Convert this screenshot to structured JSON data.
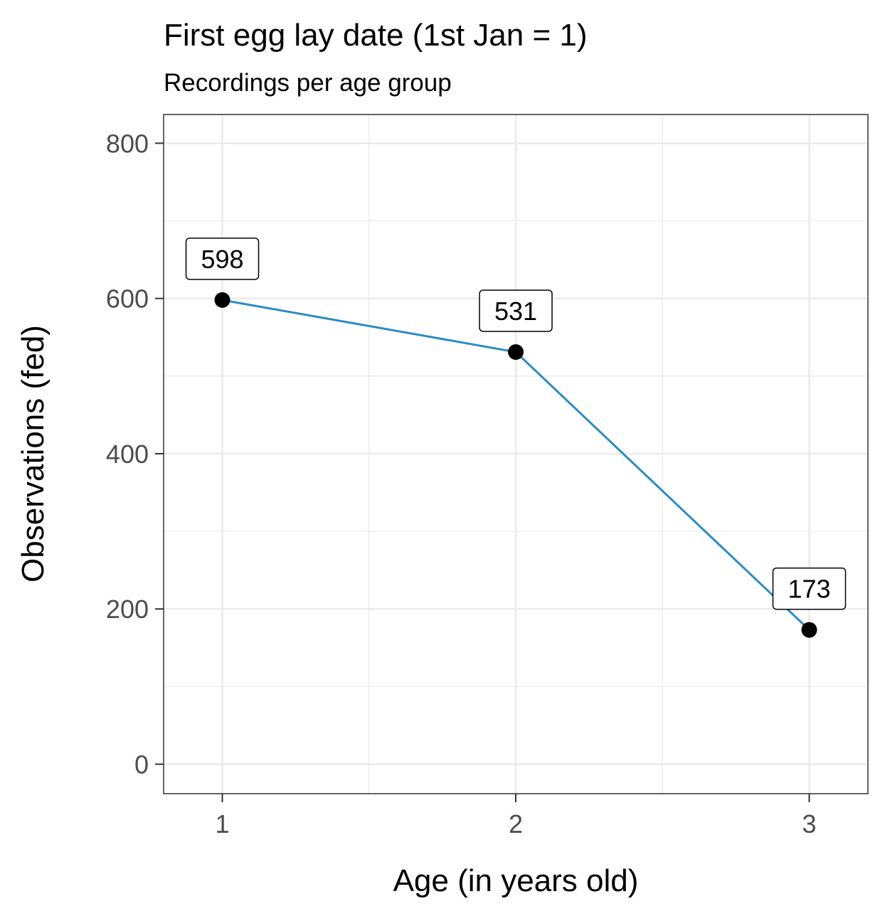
{
  "chart_data": {
    "type": "line",
    "title": "First egg lay date (1st Jan = 1)",
    "subtitle": "Recordings per age group",
    "xlabel": "Age (in years old)",
    "ylabel": "Observations (fed)",
    "x": [
      1,
      2,
      3
    ],
    "series": [
      {
        "values": [
          598,
          531,
          173
        ]
      }
    ],
    "data_labels": [
      "598",
      "531",
      "173"
    ],
    "xlim": [
      0.8,
      3.2
    ],
    "ylim": [
      -38,
      837
    ],
    "x_ticks": [
      1,
      2,
      3
    ],
    "y_ticks": [
      0,
      200,
      400,
      600,
      800
    ],
    "grid": true,
    "legend": "none",
    "colors": {
      "line": "#2b8cc4",
      "point": "#000000",
      "grid": "#ebebeb",
      "border": "#333333"
    }
  }
}
